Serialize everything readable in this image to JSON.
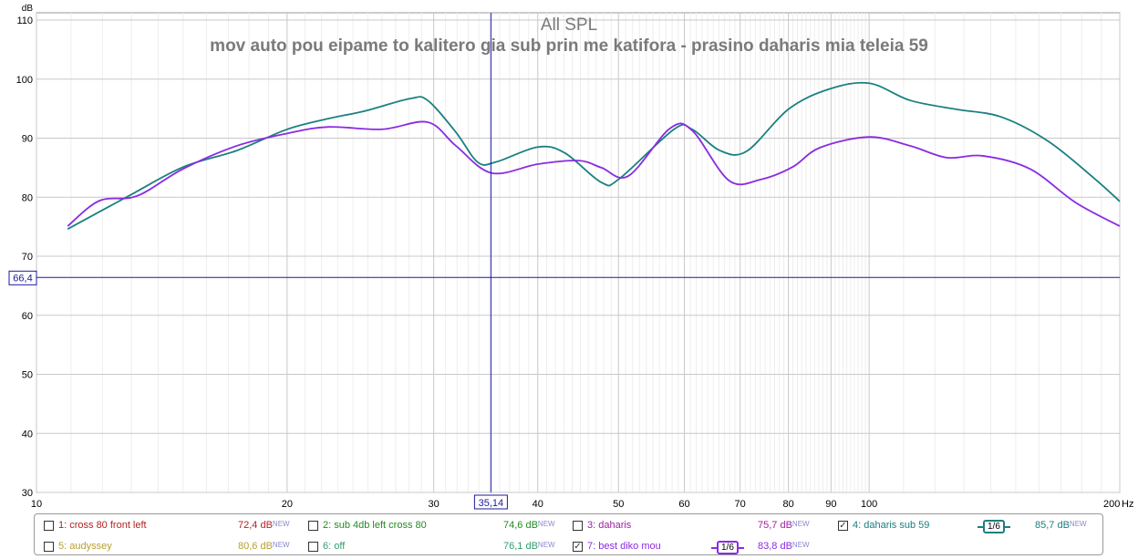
{
  "chart_data": {
    "type": "line",
    "title": "All SPL",
    "subtitle": "mov auto pou eipame to kalitero gia sub prin me katifora - prasino daharis mia teleia 59",
    "ylabel": "dB",
    "xlabel": "Hz",
    "xscale": "log",
    "xlim": [
      10,
      200
    ],
    "ylim": [
      30,
      110
    ],
    "x_ticks": [
      10,
      20,
      30,
      40,
      50,
      60,
      70,
      80,
      90,
      100,
      200
    ],
    "y_ticks": [
      30,
      40,
      50,
      60,
      70,
      80,
      90,
      100,
      110
    ],
    "grid": true,
    "cursor": {
      "x_label": "35,14",
      "y_label": "66,4",
      "x": 35.14,
      "y": 66.4
    },
    "series": [
      {
        "name": "4: daharis sub 59",
        "color": "#1a8080",
        "x": [
          10.9,
          12.9,
          15.0,
          17.4,
          20,
          22.4,
          24.8,
          28.1,
          29.5,
          31.9,
          33.9,
          35.7,
          40,
          43.1,
          47.7,
          50.1,
          58.3,
          61.3,
          66.2,
          71.3,
          80,
          89.5,
          100,
          112,
          127,
          144,
          164,
          186,
          200
        ],
        "y": [
          74.6,
          80.2,
          85.1,
          87.9,
          91.5,
          93.3,
          94.6,
          96.7,
          96.4,
          91,
          85.9,
          86,
          88.5,
          87.5,
          82.5,
          83.1,
          91.5,
          91.5,
          87.9,
          87.8,
          94.9,
          98.3,
          99.3,
          96.4,
          94.9,
          93.6,
          89.5,
          83.3,
          79.3
        ]
      },
      {
        "name": "7: best diko mou",
        "color": "#8a2be2",
        "x": [
          10.9,
          11.9,
          13.2,
          15.0,
          17.4,
          20,
          22.4,
          26.0,
          29.5,
          31.9,
          35.2,
          40,
          44.8,
          47.7,
          51.4,
          57.6,
          61.3,
          67.9,
          74.1,
          80.9,
          87.3,
          100,
          112,
          124,
          137,
          156,
          177,
          200
        ],
        "y": [
          75.1,
          79.4,
          80.2,
          84.8,
          88.7,
          90.8,
          91.9,
          91.5,
          92.7,
          88.7,
          84.1,
          85.6,
          86.2,
          85,
          83.6,
          91.6,
          91.3,
          82.8,
          83,
          85.1,
          88.4,
          90.2,
          88.7,
          86.7,
          87,
          84.8,
          79.1,
          75.1
        ]
      }
    ]
  },
  "legend": [
    {
      "label": "1: cross 80 front left",
      "value": "72,4 dB",
      "tag": "NEW",
      "color": "#b22222",
      "checked": false
    },
    {
      "label": "2: sub 4db left cross 80",
      "value": "74,6 dB",
      "tag": "NEW",
      "color": "#228b22",
      "checked": false
    },
    {
      "label": "3: daharis",
      "value": "75,7 dB",
      "tag": "NEW",
      "color": "#a020a0",
      "checked": false
    },
    {
      "label": "4: daharis sub 59",
      "value": "85,7 dB",
      "tag": "NEW",
      "color": "#1a8080",
      "checked": true,
      "smoothing": "1/6"
    },
    {
      "label": "5: audyssey",
      "value": "80,6 dB",
      "tag": "NEW",
      "color": "#b8a030",
      "checked": false
    },
    {
      "label": "6: off",
      "value": "76,1 dB",
      "tag": "NEW",
      "color": "#2e9e6e",
      "checked": false
    },
    {
      "label": "7: best diko mou",
      "value": "83,8 dB",
      "tag": "NEW",
      "color": "#8a2be2",
      "checked": true,
      "smoothing": "1/6"
    }
  ]
}
